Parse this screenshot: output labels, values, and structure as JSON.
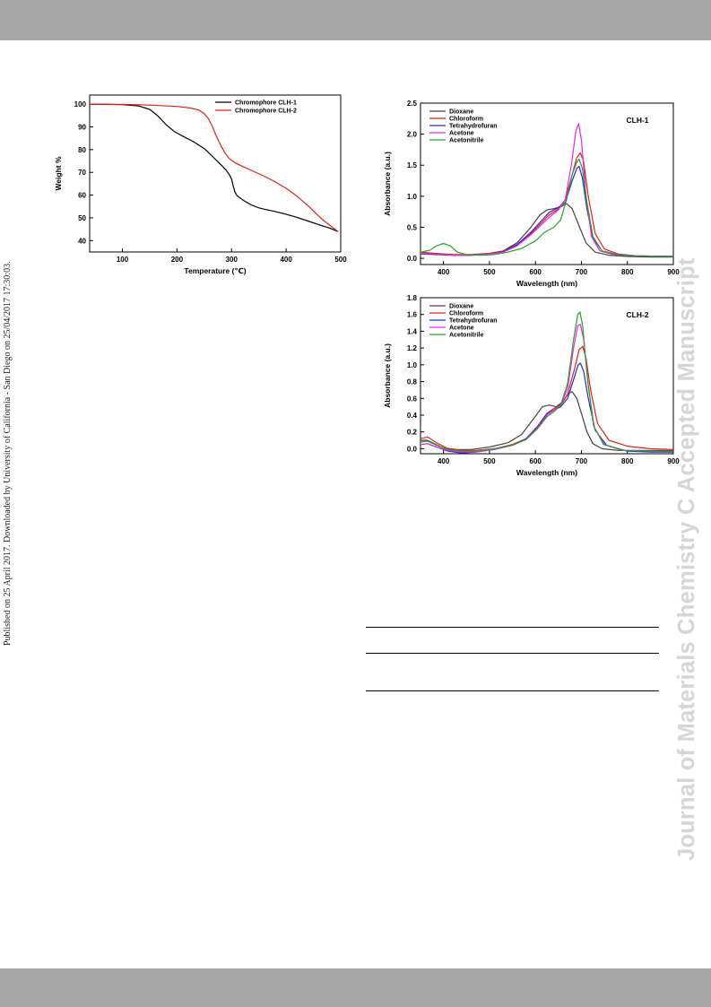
{
  "page": {
    "side_note": "Published on 25 April 2017. Downloaded by University of California - San Diego on 25/04/2017 17:30:03.",
    "watermark": "Journal of Materials Chemistry C Accepted Manuscript",
    "colors": {
      "header_bar": "#a6a6a6",
      "watermark": "#d6d6d6"
    }
  },
  "chart_data": [
    {
      "id": "tga",
      "type": "line",
      "xlabel": "Temperature (℃)",
      "ylabel": "Weight %",
      "xlim": [
        40,
        500
      ],
      "ylim": [
        35,
        104
      ],
      "xticks": [
        100,
        200,
        300,
        400,
        500
      ],
      "yticks": [
        40,
        50,
        60,
        70,
        80,
        90,
        100
      ],
      "grid": false,
      "legend_position": "top-right",
      "series": [
        {
          "name": "Chromophore CLH-1",
          "color": "#000000",
          "x": [
            40,
            100,
            130,
            150,
            165,
            180,
            195,
            210,
            230,
            250,
            265,
            280,
            290,
            296,
            300,
            303,
            306,
            310,
            320,
            330,
            340,
            350,
            360,
            380,
            400,
            420,
            440,
            460,
            480,
            495
          ],
          "y": [
            100,
            99.8,
            99.2,
            97.7,
            94.8,
            91,
            88,
            86,
            83.5,
            80.5,
            77,
            73.5,
            71,
            69,
            67,
            64,
            61.5,
            59.8,
            58,
            56.5,
            55.3,
            54.4,
            53.8,
            52.8,
            51.6,
            50.2,
            48.6,
            47,
            45.5,
            44
          ]
        },
        {
          "name": "Chromophore CLH-2",
          "color": "#e0211a",
          "x": [
            40,
            100,
            150,
            200,
            225,
            240,
            250,
            258,
            265,
            272,
            280,
            288,
            295,
            302,
            310,
            320,
            340,
            360,
            380,
            400,
            420,
            440,
            455,
            470,
            485,
            495
          ],
          "y": [
            100,
            99.9,
            99.6,
            99,
            98.3,
            97.4,
            95.8,
            93.5,
            90,
            86,
            82,
            78.5,
            76.3,
            74.9,
            73.8,
            72.6,
            70.5,
            68.3,
            65.8,
            63,
            59.5,
            55.4,
            51.8,
            48.6,
            45.8,
            44
          ]
        }
      ]
    },
    {
      "id": "clh1",
      "type": "line",
      "annotation": "CLH-1",
      "xlabel": "Wavelength (nm)",
      "ylabel": "Absorbance (a.u.)",
      "xlim": [
        350,
        900
      ],
      "ylim": [
        -0.1,
        2.5
      ],
      "xticks": [
        400,
        500,
        600,
        700,
        800,
        900
      ],
      "yticks": [
        0.0,
        0.5,
        1.0,
        1.5,
        2.0,
        2.5
      ],
      "grid": false,
      "legend_position": "top-left",
      "series": [
        {
          "name": "Dioxane",
          "color": "#444444",
          "x": [
            350,
            380,
            420,
            460,
            500,
            530,
            560,
            590,
            610,
            625,
            640,
            655,
            668,
            680,
            695,
            710,
            730,
            760,
            800,
            850,
            900
          ],
          "y": [
            0.07,
            0.06,
            0.05,
            0.05,
            0.07,
            0.12,
            0.25,
            0.5,
            0.7,
            0.78,
            0.8,
            0.83,
            0.88,
            0.8,
            0.52,
            0.25,
            0.1,
            0.05,
            0.03,
            0.02,
            0.02
          ]
        },
        {
          "name": "Chloroform",
          "color": "#e0211a",
          "x": [
            350,
            380,
            420,
            460,
            500,
            530,
            560,
            590,
            610,
            630,
            650,
            665,
            680,
            690,
            698,
            705,
            715,
            730,
            750,
            780,
            820,
            900
          ],
          "y": [
            0.1,
            0.08,
            0.06,
            0.06,
            0.08,
            0.12,
            0.22,
            0.4,
            0.55,
            0.7,
            0.8,
            0.95,
            1.35,
            1.62,
            1.7,
            1.55,
            1.0,
            0.4,
            0.15,
            0.07,
            0.04,
            0.03
          ]
        },
        {
          "name": "Tetrahydrofuran",
          "color": "#2929d6",
          "x": [
            350,
            380,
            420,
            460,
            500,
            530,
            560,
            590,
            610,
            630,
            650,
            665,
            680,
            690,
            695,
            702,
            712,
            725,
            745,
            780,
            820,
            900
          ],
          "y": [
            0.08,
            0.07,
            0.05,
            0.05,
            0.07,
            0.11,
            0.22,
            0.42,
            0.58,
            0.74,
            0.82,
            0.9,
            1.25,
            1.45,
            1.48,
            1.3,
            0.8,
            0.32,
            0.12,
            0.06,
            0.04,
            0.03
          ]
        },
        {
          "name": "Acetone",
          "color": "#e627e6",
          "x": [
            350,
            380,
            420,
            460,
            500,
            530,
            560,
            590,
            610,
            630,
            650,
            665,
            678,
            688,
            694,
            700,
            710,
            722,
            740,
            770,
            820,
            900
          ],
          "y": [
            0.08,
            0.07,
            0.05,
            0.05,
            0.07,
            0.1,
            0.2,
            0.38,
            0.52,
            0.66,
            0.78,
            0.95,
            1.5,
            2.05,
            2.17,
            1.9,
            1.0,
            0.35,
            0.12,
            0.06,
            0.04,
            0.03
          ]
        },
        {
          "name": "Acetonitrile",
          "color": "#2ca02c",
          "x": [
            350,
            370,
            385,
            400,
            415,
            430,
            450,
            480,
            510,
            540,
            570,
            600,
            620,
            640,
            655,
            668,
            680,
            690,
            695,
            702,
            712,
            725,
            745,
            780,
            820,
            900
          ],
          "y": [
            0.1,
            0.13,
            0.2,
            0.24,
            0.2,
            0.1,
            0.06,
            0.05,
            0.06,
            0.1,
            0.16,
            0.28,
            0.42,
            0.5,
            0.62,
            0.95,
            1.35,
            1.55,
            1.6,
            1.45,
            0.9,
            0.35,
            0.12,
            0.06,
            0.04,
            0.03
          ]
        }
      ]
    },
    {
      "id": "clh2",
      "type": "line",
      "annotation": "CLH-2",
      "xlabel": "Wavelength (nm)",
      "ylabel": "Absorbance (a.u.)",
      "xlim": [
        350,
        900
      ],
      "ylim": [
        -0.06,
        1.8
      ],
      "xticks": [
        400,
        500,
        600,
        700,
        800,
        900
      ],
      "yticks": [
        0.0,
        0.2,
        0.4,
        0.6,
        0.8,
        1.0,
        1.2,
        1.4,
        1.6,
        1.8
      ],
      "grid": false,
      "legend_position": "top-left",
      "series": [
        {
          "name": "Dioxane",
          "color": "#444444",
          "x": [
            350,
            365,
            380,
            400,
            430,
            460,
            500,
            540,
            570,
            595,
            615,
            630,
            645,
            660,
            672,
            680,
            690,
            700,
            712,
            725,
            745,
            780,
            820,
            900
          ],
          "y": [
            0.1,
            0.1,
            0.06,
            0.01,
            -0.01,
            -0.01,
            0.02,
            0.07,
            0.17,
            0.35,
            0.5,
            0.52,
            0.5,
            0.56,
            0.66,
            0.68,
            0.6,
            0.42,
            0.2,
            0.06,
            0.0,
            -0.02,
            -0.02,
            -0.02
          ]
        },
        {
          "name": "Chloroform",
          "color": "#e0211a",
          "x": [
            350,
            365,
            385,
            410,
            440,
            470,
            510,
            550,
            580,
            605,
            625,
            640,
            655,
            670,
            685,
            695,
            703,
            710,
            720,
            735,
            760,
            800,
            850,
            900
          ],
          "y": [
            0.12,
            0.14,
            0.07,
            0.0,
            -0.02,
            -0.02,
            0.0,
            0.05,
            0.12,
            0.27,
            0.42,
            0.48,
            0.52,
            0.65,
            0.95,
            1.18,
            1.22,
            1.08,
            0.7,
            0.3,
            0.1,
            0.03,
            0.0,
            -0.01
          ]
        },
        {
          "name": "Tetrahydrofuran",
          "color": "#2929d6",
          "x": [
            350,
            365,
            385,
            410,
            440,
            470,
            510,
            550,
            580,
            605,
            625,
            640,
            655,
            670,
            685,
            693,
            698,
            705,
            715,
            730,
            755,
            800,
            850,
            900
          ],
          "y": [
            0.05,
            0.06,
            0.02,
            -0.03,
            -0.05,
            -0.04,
            -0.01,
            0.04,
            0.12,
            0.26,
            0.42,
            0.46,
            0.5,
            0.6,
            0.86,
            1.0,
            1.02,
            0.92,
            0.6,
            0.22,
            0.04,
            -0.03,
            -0.04,
            -0.04
          ]
        },
        {
          "name": "Acetone",
          "color": "#e627e6",
          "x": [
            350,
            365,
            385,
            410,
            440,
            470,
            510,
            550,
            580,
            605,
            625,
            640,
            655,
            670,
            683,
            692,
            698,
            705,
            715,
            728,
            750,
            790,
            850,
            900
          ],
          "y": [
            0.05,
            0.06,
            0.02,
            -0.02,
            -0.04,
            -0.04,
            -0.01,
            0.04,
            0.11,
            0.25,
            0.4,
            0.46,
            0.52,
            0.72,
            1.2,
            1.47,
            1.48,
            1.3,
            0.75,
            0.25,
            0.05,
            -0.02,
            -0.03,
            -0.03
          ]
        },
        {
          "name": "Acetonitrile",
          "color": "#2ca02c",
          "x": [
            350,
            365,
            385,
            410,
            440,
            470,
            510,
            550,
            580,
            605,
            625,
            640,
            655,
            670,
            683,
            692,
            697,
            703,
            713,
            726,
            748,
            790,
            850,
            900
          ],
          "y": [
            0.08,
            0.09,
            0.04,
            -0.01,
            -0.03,
            -0.03,
            0.0,
            0.04,
            0.11,
            0.24,
            0.38,
            0.44,
            0.52,
            0.78,
            1.3,
            1.6,
            1.63,
            1.45,
            0.85,
            0.28,
            0.05,
            -0.02,
            -0.03,
            -0.03
          ]
        }
      ]
    }
  ]
}
